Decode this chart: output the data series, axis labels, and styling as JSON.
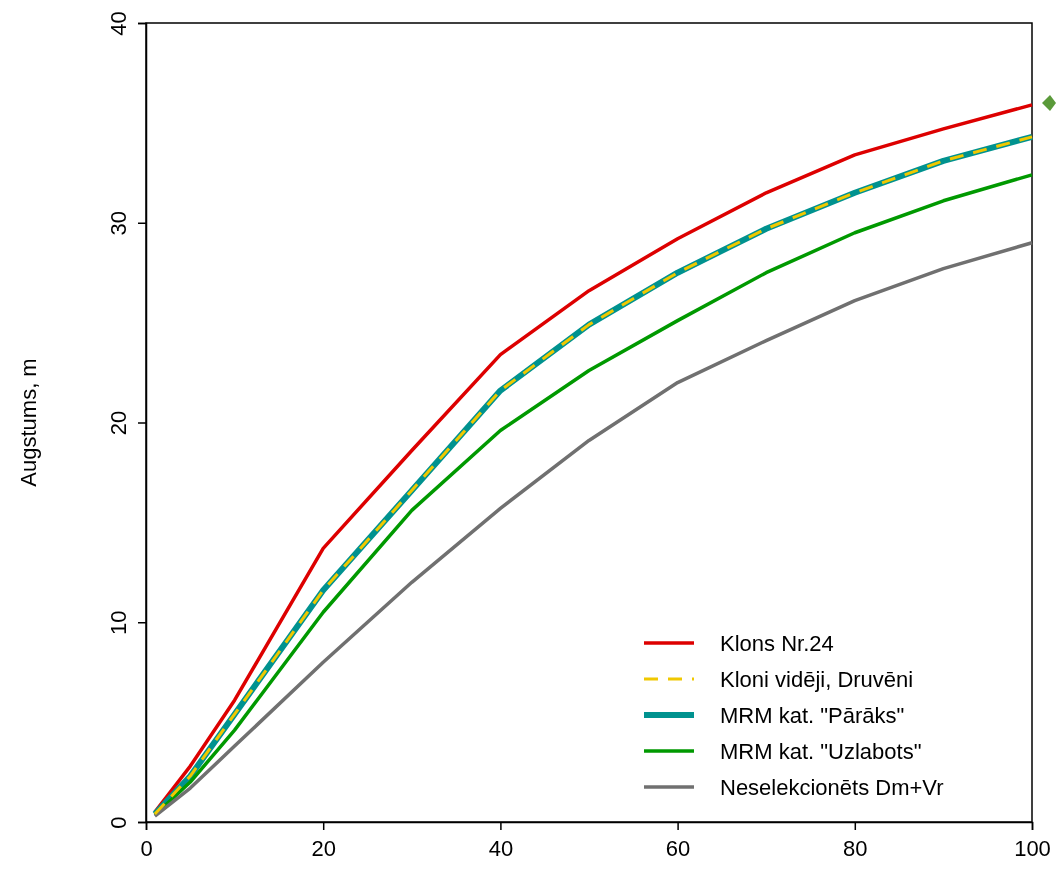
{
  "chart_data": {
    "type": "line",
    "ylabel": "Augstums, m",
    "xlim": [
      0,
      100
    ],
    "ylim": [
      0,
      40
    ],
    "xticks": [
      0,
      20,
      40,
      60,
      80,
      100
    ],
    "yticks": [
      0,
      10,
      20,
      30,
      40
    ],
    "grid": false,
    "legend": "bottom right",
    "marker": "none",
    "x": [
      1,
      5,
      10,
      20,
      30,
      40,
      50,
      60,
      70,
      80,
      90,
      100
    ],
    "series": [
      {
        "name": "Klons Nr.24",
        "color": "#dd0000",
        "line_style": "solid",
        "values": [
          0.5,
          2.8,
          6.1,
          13.7,
          18.6,
          23.4,
          26.6,
          29.2,
          31.5,
          33.4,
          34.7,
          35.9
        ]
      },
      {
        "name": "Kloni vidēji, Druvēni",
        "color": "#f0c800",
        "line_style": "dashed",
        "values": [
          0.4,
          2.3,
          5.4,
          11.6,
          16.6,
          21.6,
          24.9,
          27.5,
          29.7,
          31.5,
          33.1,
          34.3
        ]
      },
      {
        "name": "MRM kat. \"Pārāks\"",
        "color": "#00928f",
        "line_style": "solid",
        "values": [
          0.4,
          2.3,
          5.4,
          11.6,
          16.6,
          21.6,
          24.9,
          27.5,
          29.7,
          31.5,
          33.1,
          34.3
        ]
      },
      {
        "name": "MRM kat. \"Uzlabots\"",
        "color": "#009900",
        "line_style": "solid",
        "values": [
          0.35,
          2.0,
          4.6,
          10.5,
          15.6,
          19.6,
          22.6,
          25.1,
          27.5,
          29.5,
          31.1,
          32.4
        ]
      },
      {
        "name": "Neselekcionēts Dm+Vr",
        "color": "#707070",
        "line_style": "solid",
        "values": [
          0.3,
          1.7,
          3.8,
          8.0,
          12.0,
          15.7,
          19.1,
          22.0,
          24.1,
          26.1,
          27.7,
          29.0
        ]
      }
    ]
  }
}
